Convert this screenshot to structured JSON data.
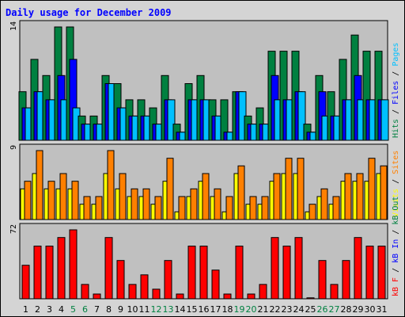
{
  "chart_data": {
    "type": "bar",
    "title": "Daily usage for December 2009",
    "categories": [
      "1",
      "2",
      "3",
      "4",
      "5",
      "6",
      "7",
      "8",
      "9",
      "10",
      "11",
      "12",
      "13",
      "14",
      "15",
      "16",
      "17",
      "18",
      "19",
      "20",
      "21",
      "22",
      "23",
      "24",
      "25",
      "26",
      "27",
      "28",
      "29",
      "30",
      "31"
    ],
    "weekend_days": [
      "5",
      "6",
      "12",
      "13",
      "19",
      "20",
      "26",
      "27"
    ],
    "colors": {
      "hits": "#008040",
      "files": "#0000ff",
      "pages": "#00c0ff",
      "visits": "#ffff00",
      "sites": "#ff8000",
      "kbytes": "#ff0000",
      "panel_bg": "#c0c0c0",
      "frame_bg": "#d4d4d4",
      "title": "#0000ff",
      "weekend_label": "#008040"
    },
    "panels": [
      {
        "name": "requests",
        "ymax_label": "14",
        "ymax": 14,
        "legend": [
          {
            "text": "Hits",
            "color": "#008040"
          },
          {
            "text": " / ",
            "color": "#000000"
          },
          {
            "text": "Files",
            "color": "#0000ff"
          },
          {
            "text": " / ",
            "color": "#000000"
          },
          {
            "text": "Pages",
            "color": "#00c0ff"
          }
        ],
        "series": [
          {
            "name": "Hits",
            "color": "#008040",
            "values": [
              6,
              10,
              8,
              14,
              14,
              3,
              3,
              8,
              7,
              5,
              5,
              4,
              8,
              2,
              7,
              8,
              5,
              5,
              6,
              3,
              4,
              11,
              11,
              11,
              2,
              8,
              6,
              10,
              13,
              11,
              11
            ]
          },
          {
            "name": "Files",
            "color": "#0000ff",
            "values": [
              4,
              6,
              5,
              8,
              10,
              2,
              2,
              7,
              4,
              3,
              3,
              2,
              5,
              1,
              5,
              5,
              3,
              1,
              6,
              2,
              2,
              8,
              5,
              6,
              1,
              6,
              3,
              5,
              8,
              5,
              5
            ]
          },
          {
            "name": "Pages",
            "color": "#00c0ff",
            "values": [
              4,
              6,
              5,
              5,
              4,
              2,
              2,
              7,
              4,
              3,
              3,
              2,
              5,
              1,
              5,
              5,
              3,
              1,
              6,
              2,
              2,
              5,
              5,
              6,
              1,
              3,
              3,
              5,
              5,
              5,
              5
            ]
          }
        ]
      },
      {
        "name": "visitors",
        "ymax_label": "9",
        "ymax": 9,
        "legend": [
          {
            "text": "Visits",
            "color": "#ffff00"
          },
          {
            "text": " / ",
            "color": "#000000"
          },
          {
            "text": "Sites",
            "color": "#ff8000"
          }
        ],
        "series": [
          {
            "name": "Visits",
            "color": "#ffff00",
            "values": [
              4,
              6,
              4,
              4,
              4,
              2,
              2,
              6,
              4,
              3,
              3,
              2,
              5,
              1,
              3,
              5,
              3,
              1,
              6,
              2,
              2,
              5,
              6,
              6,
              1,
              3,
              2,
              5,
              5,
              5,
              6
            ]
          },
          {
            "name": "Sites",
            "color": "#ff8000",
            "values": [
              5,
              9,
              5,
              6,
              5,
              3,
              3,
              9,
              6,
              4,
              4,
              3,
              8,
              3,
              4,
              6,
              4,
              3,
              7,
              3,
              3,
              6,
              8,
              8,
              2,
              4,
              3,
              6,
              6,
              8,
              7
            ]
          }
        ]
      },
      {
        "name": "kbytes",
        "ymax_label": "72",
        "ymax": 72,
        "legend": [
          {
            "text": "kB F",
            "color": "#ff0000"
          },
          {
            "text": " / ",
            "color": "#000000"
          },
          {
            "text": "kB In",
            "color": "#0000ff"
          },
          {
            "text": " / ",
            "color": "#000000"
          },
          {
            "text": "kB Out",
            "color": "#008040"
          }
        ],
        "series": [
          {
            "name": "kB F",
            "color": "#ff0000",
            "values": [
              35,
              55,
              55,
              64,
              72,
              15,
              5,
              64,
              40,
              15,
              25,
              10,
              40,
              5,
              55,
              55,
              30,
              5,
              55,
              5,
              15,
              64,
              55,
              64,
              1,
              40,
              15,
              40,
              64,
              55,
              55
            ]
          }
        ]
      }
    ]
  }
}
